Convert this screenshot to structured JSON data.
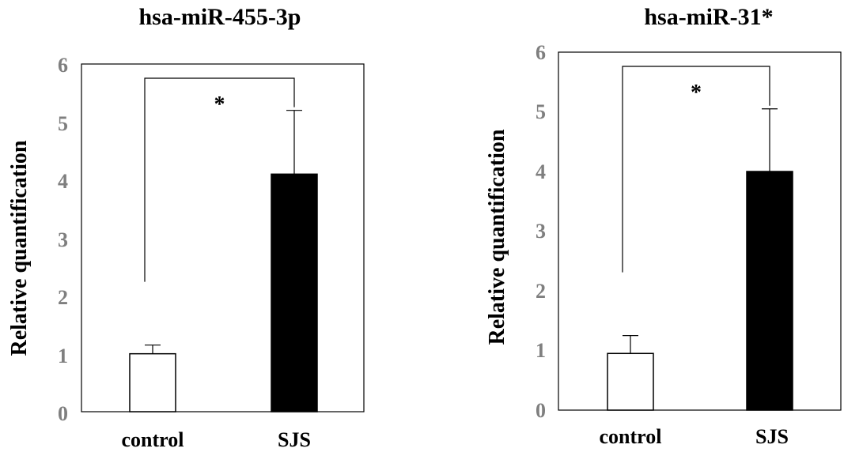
{
  "chart_data": [
    {
      "type": "bar",
      "title": "hsa-miR-455-3p",
      "ylabel": "Relative quantification",
      "xlabel": "",
      "ylim": [
        0,
        6
      ],
      "yticks": [
        "0",
        "1",
        "2",
        "3",
        "4",
        "5",
        "6"
      ],
      "categories": [
        "control",
        "SJS"
      ],
      "values": [
        1.0,
        4.1
      ],
      "errors": [
        0.15,
        1.1
      ],
      "colors": [
        "#ffffff",
        "#000000"
      ],
      "significance": "*"
    },
    {
      "type": "bar",
      "title": "hsa-miR-31*",
      "ylabel": "Relative quantification",
      "xlabel": "",
      "ylim": [
        0,
        6
      ],
      "yticks": [
        "0",
        "1",
        "2",
        "3",
        "4",
        "5",
        "6"
      ],
      "categories": [
        "control",
        "SJS"
      ],
      "values": [
        0.95,
        4.0
      ],
      "errors": [
        0.3,
        1.05
      ],
      "colors": [
        "#ffffff",
        "#000000"
      ],
      "significance": "*"
    }
  ]
}
